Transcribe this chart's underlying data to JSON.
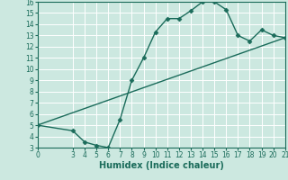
{
  "xlabel": "Humidex (Indice chaleur)",
  "bg_color": "#cce8e0",
  "line_color": "#1a6b5a",
  "grid_color": "#ffffff",
  "curve1_x": [
    0,
    3,
    4,
    5,
    6,
    7,
    8,
    9,
    10,
    11,
    12,
    13,
    14,
    15,
    16,
    17,
    18,
    19,
    20,
    21
  ],
  "curve1_y": [
    5.0,
    4.5,
    3.5,
    3.2,
    3.0,
    5.5,
    9.0,
    11.0,
    13.3,
    14.5,
    14.5,
    15.2,
    16.0,
    16.0,
    15.3,
    13.0,
    12.5,
    13.5,
    13.0,
    12.8
  ],
  "curve2_x": [
    0,
    21
  ],
  "curve2_y": [
    5.0,
    12.8
  ],
  "xlim": [
    0,
    21
  ],
  "ylim": [
    3,
    16
  ],
  "xticks": [
    0,
    3,
    4,
    5,
    6,
    7,
    8,
    9,
    10,
    11,
    12,
    13,
    14,
    15,
    16,
    17,
    18,
    19,
    20,
    21
  ],
  "yticks": [
    3,
    4,
    5,
    6,
    7,
    8,
    9,
    10,
    11,
    12,
    13,
    14,
    15,
    16
  ],
  "marker": "D",
  "marker_size": 2.5,
  "line_width": 1.0,
  "xlabel_fontsize": 7,
  "tick_fontsize": 5.5
}
